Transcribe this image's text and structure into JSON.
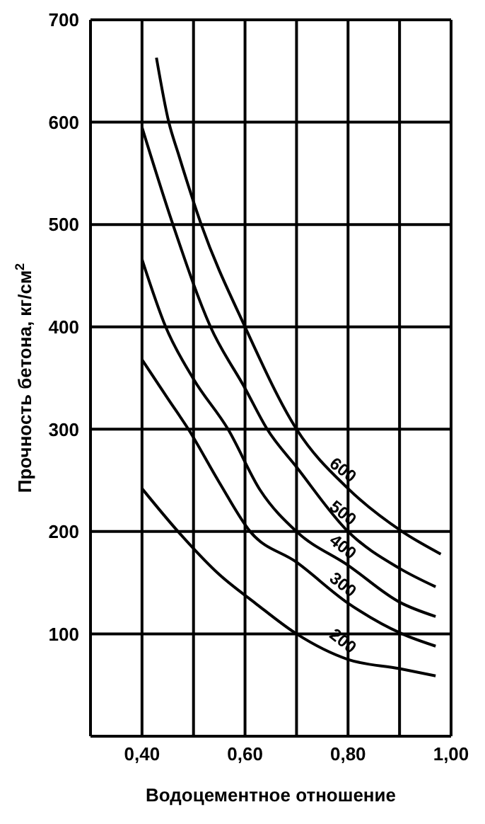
{
  "chart_data": {
    "type": "line",
    "xlabel": "Водоцементное отношение",
    "ylabel": "Прочность бетона, кг/см$^{2}$",
    "xlim": [
      0.3,
      1.0
    ],
    "xticks": [
      {
        "value": 0.3,
        "label": null
      },
      {
        "value": 0.4,
        "label": "0,40"
      },
      {
        "value": 0.5,
        "label": null
      },
      {
        "value": 0.6,
        "label": "0,60"
      },
      {
        "value": 0.7,
        "label": null
      },
      {
        "value": 0.8,
        "label": "0,80"
      },
      {
        "value": 0.9,
        "label": null
      },
      {
        "value": 1.0,
        "label": "1,00"
      }
    ],
    "ylim": [
      0,
      700
    ],
    "yticks": [
      100,
      200,
      300,
      400,
      500,
      600,
      700
    ],
    "grid": true,
    "marker": "none",
    "line_style": "solid",
    "legend": false,
    "series": [
      {
        "name": "200",
        "color": "#000000",
        "x": [
          0.4,
          0.47,
          0.55,
          0.62,
          0.7,
          0.8,
          0.9,
          0.97
        ],
        "values": [
          242,
          200,
          158,
          130,
          100,
          75,
          66,
          59
        ]
      },
      {
        "name": "300",
        "color": "#000000",
        "x": [
          0.4,
          0.45,
          0.49,
          0.55,
          0.61,
          0.7,
          0.8,
          0.905,
          0.97
        ],
        "values": [
          368,
          330,
          300,
          248,
          200,
          170,
          130,
          100,
          88
        ]
      },
      {
        "name": "400",
        "color": "#000000",
        "x": [
          0.4,
          0.446,
          0.5,
          0.567,
          0.63,
          0.7,
          0.8,
          0.9,
          0.97
        ],
        "values": [
          466,
          400,
          349,
          300,
          240,
          200,
          167,
          131,
          117
        ]
      },
      {
        "name": "500",
        "color": "#000000",
        "x": [
          0.4,
          0.46,
          0.533,
          0.6,
          0.643,
          0.7,
          0.8,
          0.9,
          0.97
        ],
        "values": [
          595,
          500,
          400,
          340,
          300,
          263,
          200,
          164,
          146
        ]
      },
      {
        "name": "600",
        "color": "#000000",
        "x": [
          0.428,
          0.452,
          0.47,
          0.515,
          0.6,
          0.7,
          0.8,
          0.905,
          0.98
        ],
        "values": [
          663,
          600,
          570,
          500,
          400,
          300,
          242,
          200,
          178
        ]
      }
    ]
  }
}
